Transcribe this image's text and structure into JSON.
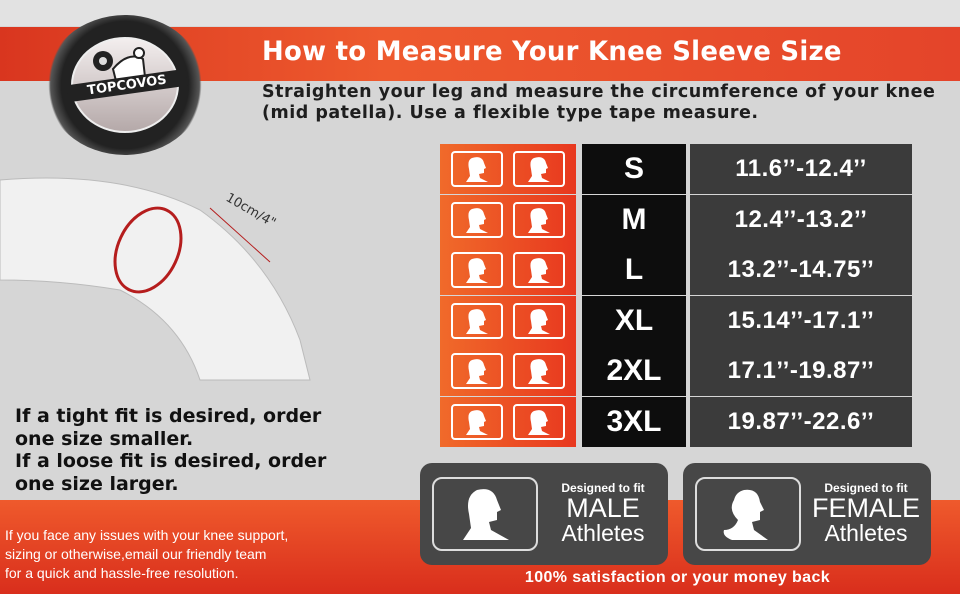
{
  "brand": {
    "logo_text": "TOPCOVOS"
  },
  "header": {
    "title": "How to Measure Your Knee Sleeve Size"
  },
  "instructions": "Straighten your leg and measure the circumference of your knee (mid patella). Use a flexible type tape measure.",
  "diagram": {
    "label": "10cm/4\""
  },
  "size_chart": [
    {
      "size": "S",
      "range": "11.6’’-12.4’’"
    },
    {
      "size": "M",
      "range": "12.4’’-13.2’’"
    },
    {
      "size": "L",
      "range": "13.2’’-14.75’’"
    },
    {
      "size": "XL",
      "range": "15.14’’-17.1’’"
    },
    {
      "size": "2XL",
      "range": "17.1’’-19.87’’"
    },
    {
      "size": "3XL",
      "range": "19.87’’-22.6’’"
    }
  ],
  "fit_tips": [
    "If a tight fit is desired, order",
    "one size smaller.",
    "If a loose fit is desired, order",
    "one size larger."
  ],
  "contact": [
    "If you face any issues with your knee support,",
    "sizing or otherwise,email our friendly team",
    "for a quick and hassle-free resolution."
  ],
  "badges": [
    {
      "line1": "Designed to fit",
      "line2": "MALE",
      "line3": "Athletes",
      "icon": "male-silhouette-icon"
    },
    {
      "line1": "Designed to fit",
      "line2": "FEMALE",
      "line3": "Athletes",
      "icon": "female-silhouette-icon"
    }
  ],
  "slogan": "100% satisfaction or your money back",
  "colors": {
    "accent": "#e8452a",
    "dark": "#3b3b3b",
    "black": "#0d0d0d"
  }
}
